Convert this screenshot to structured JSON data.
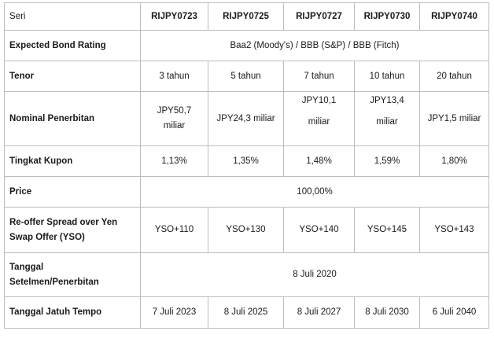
{
  "header": {
    "label": "Seri",
    "series": [
      "RIJPY0723",
      "RIJPY0725",
      "RIJPY0727",
      "RIJPY0730",
      "RIJPY0740"
    ]
  },
  "rows": {
    "rating": {
      "label": "Expected Bond Rating",
      "value": "Baa2 (Moody's) / BBB (S&P) / BBB (Fitch)"
    },
    "tenor": {
      "label": "Tenor",
      "values": [
        "3 tahun",
        "5 tahun",
        "7 tahun",
        "10 tahun",
        "20 tahun"
      ]
    },
    "nominal": {
      "label": "Nominal Penerbitan",
      "v0_a": "JPY50,7",
      "v0_b": "miliar",
      "v1": "JPY24,3 miliar",
      "v2_a": "JPY10,1",
      "v2_b": "miliar",
      "v3_a": "JPY13,4",
      "v3_b": "miliar",
      "v4": "JPY1,5 miliar"
    },
    "kupon": {
      "label": "Tingkat Kupon",
      "values": [
        "1,13%",
        "1,35%",
        "1,48%",
        "1,59%",
        "1,80%"
      ]
    },
    "price": {
      "label": "Price",
      "value": "100,00%"
    },
    "spread": {
      "label_a": "Re-offer Spread over Yen",
      "label_b": "Swap Offer (YSO)",
      "values": [
        "YSO+110",
        "YSO+130",
        "YSO+140",
        "YSO+145",
        "YSO+143"
      ]
    },
    "setelmen": {
      "label_a": "Tanggal",
      "label_b": "Setelmen/Penerbitan",
      "value": "8 Juli 2020"
    },
    "jatuh_tempo": {
      "label": "Tanggal Jatuh Tempo",
      "values": [
        "7 Juli 2023",
        "8 Juli 2025",
        "8 Juli 2027",
        "8 Juli 2030",
        "6 Juli 2040"
      ]
    }
  }
}
